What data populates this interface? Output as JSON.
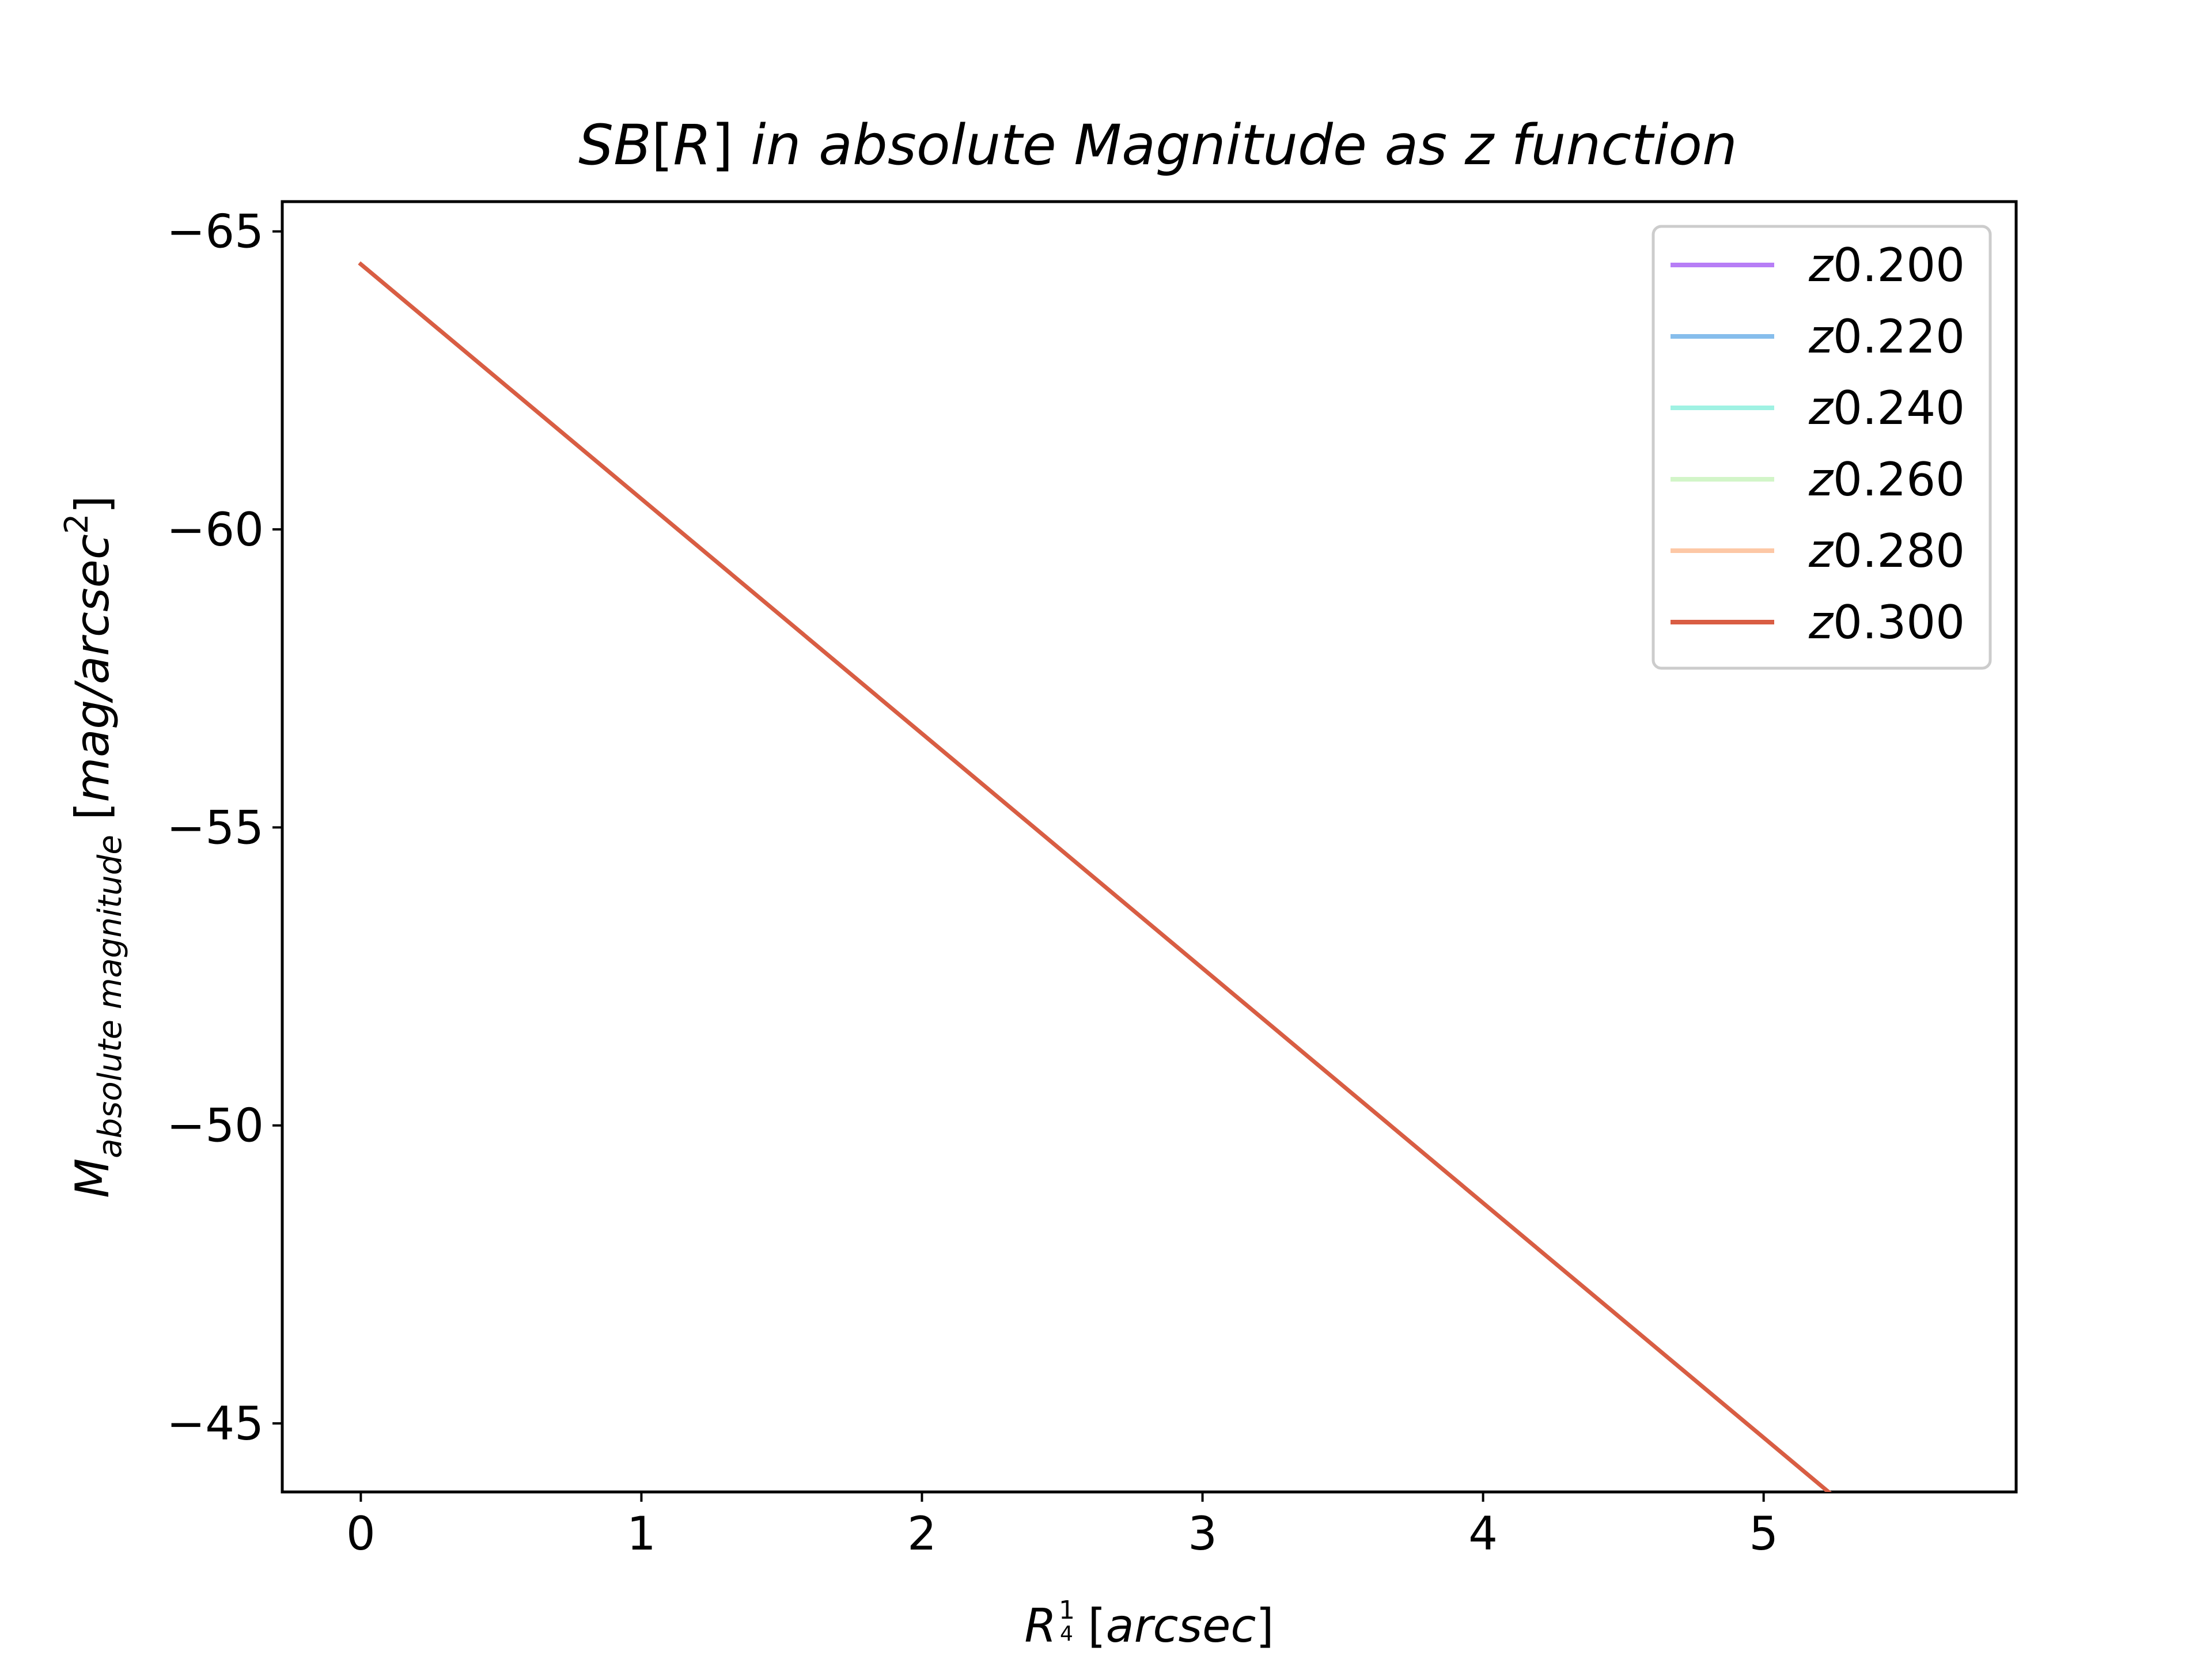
{
  "chart_data": {
    "type": "line",
    "title": {
      "pre": "SB",
      "bracket_open": "[",
      "var": "R",
      "bracket_close": "]",
      "rest": " in absolute Magnitude as z function"
    },
    "xlabel": {
      "base": "R",
      "sup_num": "1",
      "sup_den": "4",
      "bracket_open": " [",
      "unit": "arcsec",
      "bracket_close": "]"
    },
    "ylabel": {
      "base": "M",
      "sub": "absolute magnitude",
      "bracket_open": " [",
      "unit": "mag/arcsec",
      "unit_sup": "2",
      "bracket_close": "]"
    },
    "xlim": [
      -0.28,
      5.9
    ],
    "ylim": [
      -43.85,
      -65.5
    ],
    "y_inverted": true,
    "x_ticks": [
      0,
      1,
      2,
      3,
      4,
      5
    ],
    "x_tick_labels": [
      "0",
      "1",
      "2",
      "3",
      "4",
      "5"
    ],
    "y_ticks": [
      -65,
      -60,
      -55,
      -50,
      -45
    ],
    "y_tick_labels": [
      "−65",
      "−60",
      "−55",
      "−50",
      "−45"
    ],
    "grid": false,
    "legend_position": "top-right",
    "series": [
      {
        "name": "0.200",
        "color": "#b77ef6",
        "x": [
          0,
          5.63
        ],
        "y": [
          -64.45,
          -42.28
        ]
      },
      {
        "name": "0.220",
        "color": "#86bdec",
        "x": [
          0,
          5.63
        ],
        "y": [
          -64.45,
          -42.28
        ]
      },
      {
        "name": "0.240",
        "color": "#9ff2e3",
        "x": [
          0,
          5.63
        ],
        "y": [
          -64.45,
          -42.28
        ]
      },
      {
        "name": "0.260",
        "color": "#d2f5c8",
        "x": [
          0,
          5.63
        ],
        "y": [
          -64.45,
          -42.28
        ]
      },
      {
        "name": "0.280",
        "color": "#fdc8a6",
        "x": [
          0,
          5.63
        ],
        "y": [
          -64.45,
          -42.28
        ]
      },
      {
        "name": "0.300",
        "color": "#d95d43",
        "x": [
          0,
          5.63
        ],
        "y": [
          -64.45,
          -42.28
        ]
      }
    ],
    "legend_var": "z"
  }
}
